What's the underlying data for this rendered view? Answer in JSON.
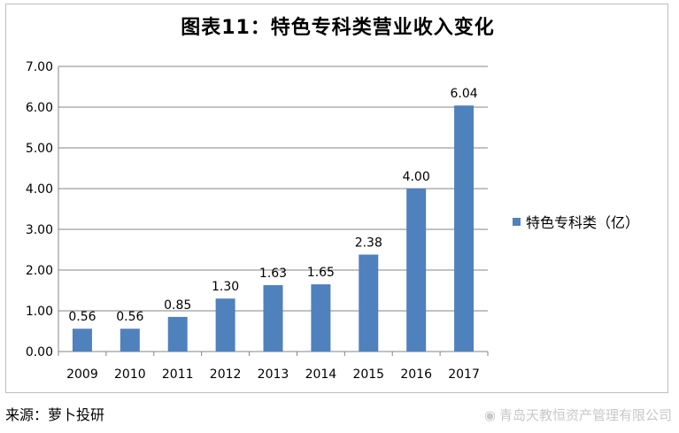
{
  "chart_data": {
    "type": "bar",
    "title": "图表11：特色专科类营业收入变化",
    "categories": [
      "2009",
      "2010",
      "2011",
      "2012",
      "2013",
      "2014",
      "2015",
      "2016",
      "2017"
    ],
    "series": [
      {
        "name": "特色专科类（亿）",
        "values": [
          0.56,
          0.56,
          0.85,
          1.3,
          1.63,
          1.65,
          2.38,
          4.0,
          6.04
        ]
      }
    ],
    "data_labels": [
      "0.56",
      "0.56",
      "0.85",
      "1.30",
      "1.63",
      "1.65",
      "2.38",
      "4.00",
      "6.04"
    ],
    "y_ticks": [
      "0.00",
      "1.00",
      "2.00",
      "3.00",
      "4.00",
      "5.00",
      "6.00",
      "7.00"
    ],
    "ylim": [
      0,
      7
    ],
    "grid": true,
    "legend_position": "right",
    "bar_color": "#4f81bd"
  },
  "source": "来源：萝卜投研",
  "watermark": "青岛天教恒资产管理有限公司"
}
